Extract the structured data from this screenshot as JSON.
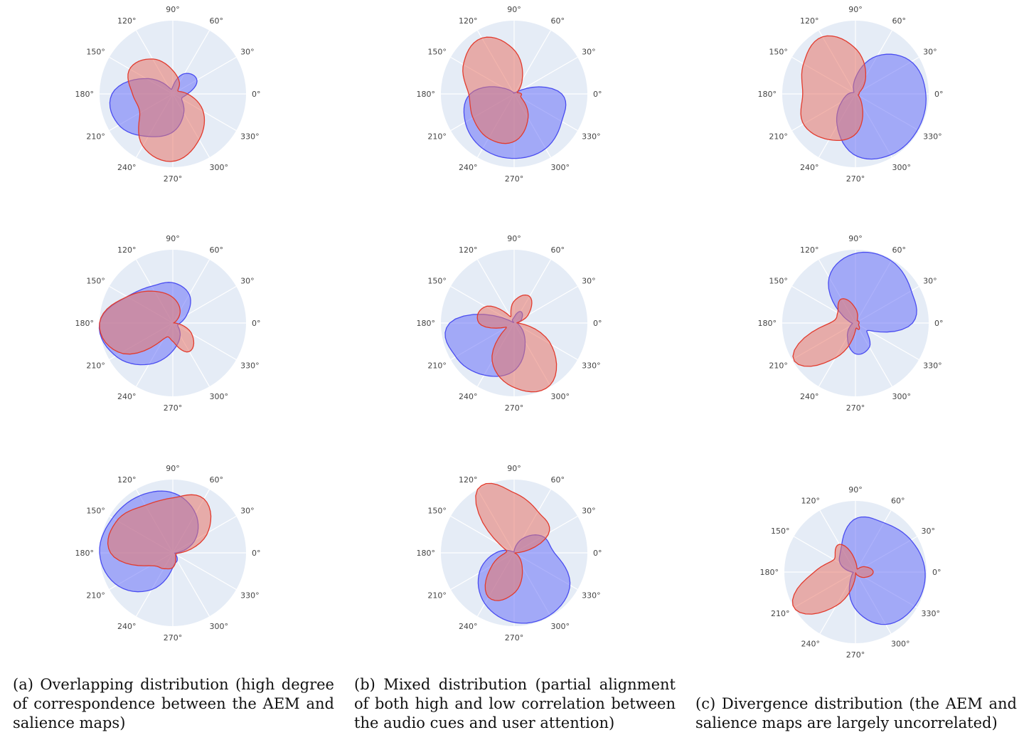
{
  "colors": {
    "blue_fill": "#6b73f7",
    "red_fill": "#e8766a",
    "red_line": "#e23b2e",
    "blue_line": "#4a4df0",
    "polar_bg": "#e5ecf6"
  },
  "angle_ticks": [
    "0°",
    "30°",
    "60°",
    "90°",
    "120°",
    "150°",
    "180°",
    "210°",
    "240°",
    "270°",
    "300°",
    "330°"
  ],
  "captions": [
    "(a) Overlapping distribution (high degree of correspondence between the AEM and salience maps)",
    "(b) Mixed distribution (partial alignment of both high and low correlation between the audio cues and user attention)",
    "(c) Divergence distribution (the AEM and salience maps are largely uncorrelated)"
  ],
  "chart_data": [
    {
      "type": "polar-area",
      "panel": "a",
      "row": 1,
      "angles_deg": [
        0,
        30,
        60,
        90,
        120,
        150,
        180,
        210,
        240,
        270,
        300,
        330
      ],
      "r_max": 1,
      "series": [
        {
          "color": "blue",
          "values": [
            0.2,
            0.38,
            0.32,
            0.1,
            0.1,
            0.42,
            0.83,
            0.85,
            0.67,
            0.52,
            0.3,
            0.14
          ]
        },
        {
          "color": "red",
          "values": [
            0.2,
            0.08,
            0.18,
            0.32,
            0.55,
            0.68,
            0.55,
            0.52,
            0.82,
            0.92,
            0.72,
            0.48
          ]
        }
      ]
    },
    {
      "type": "polar-area",
      "panel": "b",
      "row": 1,
      "angles_deg": [
        0,
        30,
        60,
        90,
        120,
        150,
        180,
        210,
        240,
        270,
        300,
        330
      ],
      "r_max": 1,
      "series": [
        {
          "color": "blue",
          "values": [
            0.65,
            0.1,
            0.02,
            0.02,
            0.02,
            0.15,
            0.6,
            0.77,
            0.86,
            0.88,
            0.86,
            0.75
          ]
        },
        {
          "color": "red",
          "values": [
            0.1,
            0.05,
            0.22,
            0.6,
            0.88,
            0.8,
            0.62,
            0.65,
            0.7,
            0.65,
            0.38,
            0.12
          ]
        }
      ]
    },
    {
      "type": "polar-area",
      "panel": "c",
      "row": 1,
      "angles_deg": [
        0,
        30,
        60,
        90,
        120,
        150,
        180,
        210,
        240,
        270,
        300,
        330
      ],
      "r_max": 1,
      "series": [
        {
          "color": "blue",
          "values": [
            0.96,
            0.88,
            0.6,
            0.22,
            0.05,
            0.04,
            0.1,
            0.22,
            0.5,
            0.84,
            0.96,
            0.98
          ]
        },
        {
          "color": "red",
          "values": [
            0.05,
            0.08,
            0.28,
            0.62,
            0.9,
            0.82,
            0.72,
            0.82,
            0.72,
            0.55,
            0.18,
            0.05
          ]
        }
      ]
    },
    {
      "type": "polar-area",
      "panel": "a",
      "row": 2,
      "angles_deg": [
        0,
        30,
        60,
        90,
        120,
        150,
        180,
        210,
        240,
        270,
        300,
        330
      ],
      "r_max": 1,
      "series": [
        {
          "color": "blue",
          "values": [
            0.1,
            0.22,
            0.45,
            0.55,
            0.58,
            0.72,
            1.0,
            0.9,
            0.65,
            0.38,
            0.2,
            0.08
          ]
        },
        {
          "color": "red",
          "values": [
            0.03,
            0.05,
            0.2,
            0.35,
            0.5,
            0.72,
            1.0,
            0.82,
            0.25,
            0.25,
            0.45,
            0.3
          ]
        }
      ]
    },
    {
      "type": "polar-area",
      "panel": "b",
      "row": 2,
      "angles_deg": [
        0,
        30,
        60,
        90,
        120,
        150,
        180,
        210,
        240,
        270,
        300,
        330
      ],
      "r_max": 1,
      "series": [
        {
          "color": "blue",
          "values": [
            0.05,
            0.12,
            0.18,
            0.08,
            0.05,
            0.05,
            0.88,
            0.92,
            0.82,
            0.65,
            0.3,
            0.1
          ]
        },
        {
          "color": "red",
          "values": [
            0.05,
            0.22,
            0.42,
            0.3,
            0.1,
            0.45,
            0.48,
            0.12,
            0.6,
            0.88,
            0.98,
            0.58
          ]
        }
      ]
    },
    {
      "type": "polar-area",
      "panel": "c",
      "row": 2,
      "angles_deg": [
        0,
        30,
        60,
        90,
        120,
        150,
        180,
        210,
        240,
        270,
        300,
        330
      ],
      "r_max": 1,
      "series": [
        {
          "color": "blue",
          "values": [
            0.78,
            0.88,
            0.98,
            0.95,
            0.72,
            0.2,
            0.05,
            0.08,
            0.22,
            0.42,
            0.38,
            0.2
          ]
        },
        {
          "color": "red",
          "values": [
            0.05,
            0.05,
            0.05,
            0.2,
            0.38,
            0.28,
            0.35,
            0.98,
            0.55,
            0.1,
            0.1,
            0.05
          ]
        }
      ]
    },
    {
      "type": "polar-area",
      "panel": "a",
      "row": 3,
      "angles_deg": [
        0,
        30,
        60,
        90,
        120,
        150,
        180,
        210,
        240,
        270,
        300,
        330
      ],
      "r_max": 1,
      "series": [
        {
          "color": "blue",
          "values": [
            0.05,
            0.35,
            0.62,
            0.82,
            0.9,
            0.95,
            1.0,
            0.88,
            0.58,
            0.2,
            0.12,
            0.05
          ]
        },
        {
          "color": "red",
          "values": [
            0.1,
            0.55,
            0.85,
            0.75,
            0.75,
            0.88,
            0.85,
            0.35,
            0.25,
            0.2,
            0.08,
            0.05
          ]
        }
      ]
    },
    {
      "type": "polar-area",
      "panel": "b",
      "row": 3,
      "angles_deg": [
        0,
        30,
        60,
        90,
        120,
        150,
        180,
        210,
        240,
        270,
        300,
        330
      ],
      "r_max": 1,
      "series": [
        {
          "color": "blue",
          "values": [
            0.55,
            0.45,
            0.22,
            0.02,
            0.02,
            0.05,
            0.25,
            0.55,
            0.8,
            0.95,
            0.98,
            0.88
          ]
        },
        {
          "color": "red",
          "values": [
            0.02,
            0.55,
            0.65,
            0.82,
            1.0,
            0.22,
            0.12,
            0.35,
            0.7,
            0.55,
            0.22,
            0.05
          ]
        }
      ]
    },
    {
      "type": "polar-area",
      "panel": "c",
      "row": 3,
      "angles_deg": [
        0,
        30,
        60,
        90,
        120,
        150,
        180,
        210,
        240,
        270,
        300,
        330
      ],
      "r_max": 1,
      "series": [
        {
          "color": "blue",
          "values": [
            0.98,
            0.9,
            0.8,
            0.75,
            0.4,
            0.25,
            0.05,
            0.05,
            0.15,
            0.52,
            0.85,
            0.96
          ]
        },
        {
          "color": "red",
          "values": [
            0.25,
            0.15,
            0.05,
            0.15,
            0.45,
            0.35,
            0.58,
            1.0,
            0.55,
            0.05,
            0.05,
            0.15
          ]
        }
      ]
    }
  ]
}
